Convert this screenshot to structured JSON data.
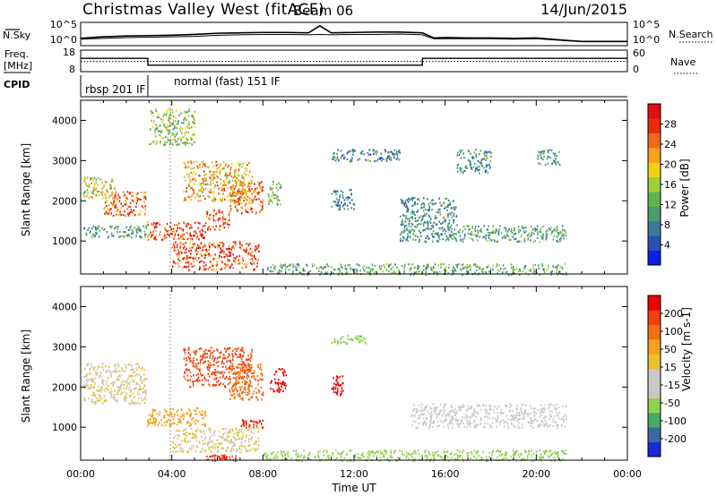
{
  "header": {
    "site": "Christmas Valley West (fitACF)",
    "beam": "Beam 06",
    "date": "14/Jun/2015"
  },
  "noise_panel": {
    "left_label": "N.Sky",
    "left_ticks": [
      "10^5",
      "10^0"
    ],
    "right_ticks": [
      "10^5",
      "10^0"
    ],
    "right_label": "N.Search"
  },
  "freq_panel": {
    "left_label_1": "Freq.",
    "left_label_2": "[MHz]",
    "left_ticks": [
      "18",
      "8"
    ],
    "right_ticks": [
      "60",
      "0"
    ],
    "right_label": "Nave"
  },
  "cpid_panel": {
    "label": "CPID",
    "modes": [
      "rbsp 201 IF",
      "normal (fast) 151 IF"
    ]
  },
  "time_axis": {
    "label": "Time UT",
    "ticks": [
      "00:00",
      "04:00",
      "08:00",
      "12:00",
      "16:00",
      "20:00",
      "00:00"
    ]
  },
  "colors": {
    "power_scale": [
      "#0b20e6",
      "#2a4fb0",
      "#3a7a9a",
      "#4c9a70",
      "#5fb34c",
      "#a0cc3c",
      "#f0d010",
      "#f5a020",
      "#f26a18",
      "#e82a10",
      "#e01010"
    ],
    "velocity_scale": [
      "#ee0000",
      "#f04010",
      "#f07010",
      "#f5a020",
      "#e8c030",
      "#c8c8c8",
      "#c8c8c8",
      "#90d050",
      "#4aa868",
      "#3a6aa0",
      "#1a2ad8"
    ]
  },
  "chart_data": [
    {
      "type": "line",
      "title": "Christmas Valley West (fitACF) Beam 06",
      "xlabel": "Time UT",
      "ylabel": "N.Sky / N.Search",
      "x_hours": [
        0.0,
        0.5,
        1.0,
        2.0,
        3.0,
        4.0,
        5.0,
        6.0,
        7.0,
        8.0,
        9.0,
        10.0,
        10.5,
        11.0,
        12.0,
        13.0,
        14.0,
        15.0,
        15.5,
        16.0,
        17.0,
        18.0,
        19.0,
        20.0,
        21.3,
        22.0,
        24.0
      ],
      "series": [
        {
          "name": "N.Sky",
          "log10_values": [
            1.4,
            1.6,
            1.8,
            2.0,
            2.1,
            2.2,
            2.4,
            2.7,
            2.8,
            2.9,
            2.9,
            2.8,
            4.6,
            2.8,
            2.9,
            3.0,
            3.0,
            2.8,
            1.5,
            1.6,
            1.5,
            1.5,
            1.4,
            1.5,
            0.9,
            0.6,
            0.6
          ]
        },
        {
          "name": "N.Search",
          "log10_values": [
            1.2,
            1.3,
            1.4,
            1.6,
            1.7,
            1.8,
            1.9,
            2.2,
            2.3,
            2.4,
            2.4,
            2.3,
            2.4,
            2.3,
            2.4,
            2.4,
            2.5,
            2.3,
            1.3,
            1.3,
            1.3,
            1.3,
            1.2,
            1.3,
            0.8,
            0.6,
            0.6
          ]
        }
      ]
    },
    {
      "type": "line",
      "ylabel": "Freq. [MHz]",
      "ylim": [
        8,
        18
      ],
      "x_hours": [
        0.0,
        2.95,
        2.95,
        15.0,
        15.0,
        24.0
      ],
      "series": [
        {
          "name": "Freq.",
          "values": [
            14.4,
            14.4,
            10.6,
            10.6,
            14.4,
            14.4
          ]
        },
        {
          "name": "Nave",
          "values": [
            28,
            28,
            28,
            28,
            28,
            28
          ]
        }
      ]
    },
    {
      "type": "heatmap",
      "ylabel": "Slant Range [km]",
      "xlabel": "Time UT",
      "xlim": [
        0,
        24
      ],
      "ylim": [
        180,
        4500
      ],
      "yticks": [
        1000,
        2000,
        3000,
        4000
      ],
      "xticks": [
        "00:00",
        "04:00",
        "08:00",
        "12:00",
        "16:00",
        "20:00",
        "00:00"
      ],
      "colorbar": {
        "label": "Power [dB]",
        "ticks": [
          4,
          8,
          12,
          16,
          20,
          24,
          28
        ]
      },
      "echo_regions": [
        {
          "t0": 0.1,
          "t1": 1.5,
          "r0": 2050,
          "r1": 2600,
          "value": 17
        },
        {
          "t0": 1.0,
          "t1": 2.9,
          "r0": 1650,
          "r1": 2250,
          "value": 25
        },
        {
          "t0": 0.1,
          "t1": 2.9,
          "r0": 1100,
          "r1": 1400,
          "value": 9
        },
        {
          "t0": 2.9,
          "t1": 5.5,
          "r0": 1050,
          "r1": 1500,
          "value": 28
        },
        {
          "t0": 5.5,
          "t1": 6.5,
          "r0": 1300,
          "r1": 1800,
          "value": 26
        },
        {
          "t0": 6.5,
          "t1": 8.0,
          "r0": 1700,
          "r1": 2500,
          "value": 24
        },
        {
          "t0": 4.5,
          "t1": 7.5,
          "r0": 2000,
          "r1": 3000,
          "value": 20
        },
        {
          "t0": 4.0,
          "t1": 7.8,
          "r0": 300,
          "r1": 1000,
          "value": 27
        },
        {
          "t0": 3.0,
          "t1": 5.0,
          "r0": 3400,
          "r1": 4300,
          "value": 14
        },
        {
          "t0": 8.2,
          "t1": 8.8,
          "r0": 1900,
          "r1": 2500,
          "value": 12
        },
        {
          "t0": 11.0,
          "t1": 12.0,
          "r0": 1800,
          "r1": 2300,
          "value": 6
        },
        {
          "t0": 11.0,
          "t1": 14.0,
          "r0": 3000,
          "r1": 3300,
          "value": 7
        },
        {
          "t0": 14.0,
          "t1": 16.5,
          "r0": 1000,
          "r1": 2100,
          "value": 8
        },
        {
          "t0": 16.0,
          "t1": 21.3,
          "r0": 1000,
          "r1": 1400,
          "value": 10
        },
        {
          "t0": 16.5,
          "t1": 18.0,
          "r0": 2700,
          "r1": 3300,
          "value": 8
        },
        {
          "t0": 20.0,
          "t1": 21.0,
          "r0": 2900,
          "r1": 3300,
          "value": 9
        },
        {
          "t0": 8.0,
          "t1": 21.3,
          "r0": 180,
          "r1": 450,
          "value": 11
        }
      ]
    },
    {
      "type": "heatmap",
      "ylabel": "Slant Range [km]",
      "xlabel": "Time UT",
      "xlim": [
        0,
        24
      ],
      "ylim": [
        180,
        4500
      ],
      "yticks": [
        1000,
        2000,
        3000,
        4000
      ],
      "xticks": [
        "00:00",
        "04:00",
        "08:00",
        "12:00",
        "16:00",
        "20:00",
        "00:00"
      ],
      "colorbar": {
        "label": "Velocity [m s-1]",
        "ticks": [
          200,
          100,
          50,
          15,
          -15,
          -50,
          -100,
          -200
        ]
      },
      "echo_regions": [
        {
          "t0": 0.1,
          "t1": 2.9,
          "r0": 1600,
          "r1": 2600,
          "value": 0
        },
        {
          "t0": 2.9,
          "t1": 5.5,
          "r0": 1050,
          "r1": 1500,
          "value": -10
        },
        {
          "t0": 4.5,
          "t1": 7.5,
          "r0": 2000,
          "r1": 3000,
          "value": -60
        },
        {
          "t0": 4.0,
          "t1": 7.8,
          "r0": 400,
          "r1": 1000,
          "value": 0
        },
        {
          "t0": 6.5,
          "t1": 8.0,
          "r0": 1700,
          "r1": 2600,
          "value": -40
        },
        {
          "t0": 8.3,
          "t1": 9.0,
          "r0": 1900,
          "r1": 2500,
          "value": -220
        },
        {
          "t0": 11.0,
          "t1": 11.5,
          "r0": 1800,
          "r1": 2300,
          "value": -180
        },
        {
          "t0": 7.0,
          "t1": 8.0,
          "r0": 1000,
          "r1": 1200,
          "value": -90
        },
        {
          "t0": 5.5,
          "t1": 6.8,
          "r0": 180,
          "r1": 330,
          "value": -90
        },
        {
          "t0": 14.5,
          "t1": 21.3,
          "r0": 1000,
          "r1": 1600,
          "value": 5
        },
        {
          "t0": 8.0,
          "t1": 21.3,
          "r0": 180,
          "r1": 450,
          "value": 30
        },
        {
          "t0": 11.0,
          "t1": 12.5,
          "r0": 3100,
          "r1": 3300,
          "value": 40
        }
      ]
    }
  ]
}
